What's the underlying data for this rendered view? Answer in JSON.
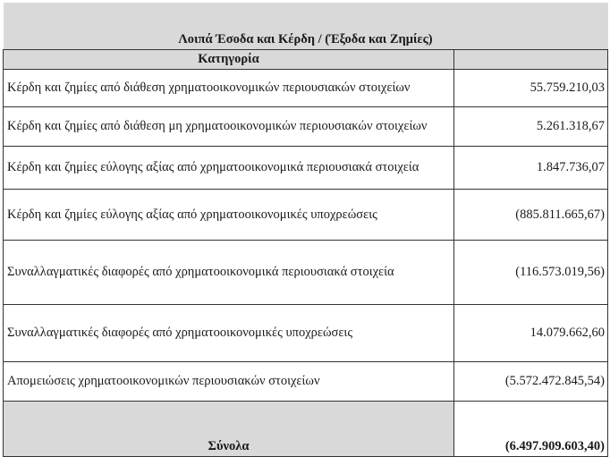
{
  "table": {
    "title": "Λοιπά Έσοδα και Κέρδη / (Έξοδα και Ζημίες)",
    "column_header": "Κατηγορία",
    "rows": [
      {
        "label": "Κέρδη και ζημίες από διάθεση χρηματοοικονομικών περιουσιακών στοιχείων",
        "value": "55.759.210,03"
      },
      {
        "label": "Κέρδη και ζημίες από διάθεση μη χρηματοοικονομικών περιουσιακών στοιχείων",
        "value": "5.261.318,67"
      },
      {
        "label": "Κέρδη και ζημίες εύλογης αξίας από χρηματοοικονομικά περιουσιακά στοιχεία",
        "value": "1.847.736,07"
      },
      {
        "label": "Κέρδη και ζημίες εύλογης αξίας από  χρηματοοικονομικές υποχρεώσεις",
        "value": "(885.811.665,67)"
      },
      {
        "label": "Συναλλαγματικές διαφορές από χρηματοοικονομικά περιουσιακά στοιχεία",
        "value": "(116.573.019,56)"
      },
      {
        "label": "Συναλλαγματικές διαφορές από χρηματοοικονομικές υποχρεώσεις",
        "value": "14.079.662,60"
      },
      {
        "label": "Απομειώσεις χρηματοοικονομικών περιουσιακών στοιχείων",
        "value": "(5.572.472.845,54)"
      }
    ],
    "total_label": "Σύνολα",
    "total_value": "(6.497.909.603,40)"
  }
}
